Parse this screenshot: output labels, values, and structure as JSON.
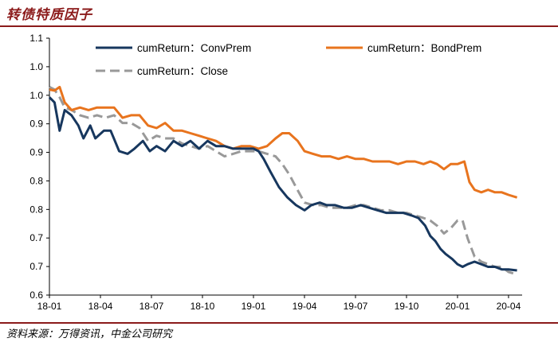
{
  "header": {
    "title": "转债特质因子"
  },
  "footer": {
    "source": "资料来源：万得资讯，中金公司研究"
  },
  "colors": {
    "brand": "#8B1A1A",
    "ConvPrem": "#17375E",
    "BondPrem": "#E8741E",
    "Close": "#999999"
  },
  "chart_data": {
    "type": "line",
    "title": "",
    "xlabel": "",
    "ylabel": "",
    "ylim": [
      0.6,
      1.1
    ],
    "ytick_labels": [
      "1.1",
      "1.0",
      "1.0",
      "0.9",
      "0.9",
      "0.8",
      "0.8",
      "0.7",
      "0.7",
      "0.6"
    ],
    "xtick_labels": [
      "18-01",
      "18-04",
      "18-07",
      "18-10",
      "19-01",
      "19-04",
      "19-07",
      "19-10",
      "20-01",
      "20-04"
    ],
    "x_unit": "months since 2018-01",
    "legend_position": "top",
    "series": [
      {
        "name": "cumReturn：ConvPrem",
        "color": "#17375E",
        "dash": "solid",
        "points": [
          [
            0,
            0.985
          ],
          [
            0.3,
            0.975
          ],
          [
            0.6,
            0.92
          ],
          [
            0.9,
            0.96
          ],
          [
            1.3,
            0.95
          ],
          [
            1.7,
            0.93
          ],
          [
            2.0,
            0.905
          ],
          [
            2.4,
            0.93
          ],
          [
            2.7,
            0.905
          ],
          [
            3.2,
            0.92
          ],
          [
            3.6,
            0.92
          ],
          [
            4.1,
            0.88
          ],
          [
            4.6,
            0.875
          ],
          [
            5.0,
            0.885
          ],
          [
            5.5,
            0.9
          ],
          [
            5.9,
            0.88
          ],
          [
            6.3,
            0.89
          ],
          [
            6.8,
            0.88
          ],
          [
            7.3,
            0.9
          ],
          [
            7.8,
            0.89
          ],
          [
            8.3,
            0.9
          ],
          [
            8.8,
            0.885
          ],
          [
            9.3,
            0.9
          ],
          [
            9.8,
            0.89
          ],
          [
            10.3,
            0.89
          ],
          [
            10.8,
            0.885
          ],
          [
            11.4,
            0.885
          ],
          [
            12.0,
            0.885
          ],
          [
            12.3,
            0.88
          ],
          [
            12.6,
            0.865
          ],
          [
            13.0,
            0.84
          ],
          [
            13.5,
            0.81
          ],
          [
            14.0,
            0.79
          ],
          [
            14.5,
            0.775
          ],
          [
            15.0,
            0.765
          ],
          [
            15.4,
            0.775
          ],
          [
            15.9,
            0.78
          ],
          [
            16.3,
            0.775
          ],
          [
            16.8,
            0.775
          ],
          [
            17.3,
            0.77
          ],
          [
            17.8,
            0.77
          ],
          [
            18.3,
            0.775
          ],
          [
            18.8,
            0.77
          ],
          [
            19.3,
            0.765
          ],
          [
            19.8,
            0.76
          ],
          [
            20.3,
            0.76
          ],
          [
            20.8,
            0.76
          ],
          [
            21.3,
            0.755
          ],
          [
            21.7,
            0.75
          ],
          [
            22.1,
            0.735
          ],
          [
            22.4,
            0.715
          ],
          [
            22.7,
            0.705
          ],
          [
            23.0,
            0.69
          ],
          [
            23.3,
            0.68
          ],
          [
            23.7,
            0.67
          ],
          [
            24.0,
            0.66
          ],
          [
            24.3,
            0.655
          ],
          [
            24.6,
            0.66
          ],
          [
            25.0,
            0.665
          ],
          [
            25.4,
            0.66
          ],
          [
            25.8,
            0.655
          ],
          [
            26.2,
            0.655
          ],
          [
            26.6,
            0.65
          ],
          [
            27.0,
            0.65
          ],
          [
            27.5,
            0.648
          ]
        ]
      },
      {
        "name": "cumReturn：BondPrem",
        "color": "#E8741E",
        "dash": "solid",
        "points": [
          [
            0,
            1.0
          ],
          [
            0.3,
            0.998
          ],
          [
            0.6,
            1.005
          ],
          [
            0.9,
            0.975
          ],
          [
            1.3,
            0.96
          ],
          [
            1.8,
            0.965
          ],
          [
            2.3,
            0.96
          ],
          [
            2.8,
            0.965
          ],
          [
            3.3,
            0.965
          ],
          [
            3.8,
            0.965
          ],
          [
            4.3,
            0.945
          ],
          [
            4.8,
            0.95
          ],
          [
            5.3,
            0.95
          ],
          [
            5.8,
            0.93
          ],
          [
            6.3,
            0.925
          ],
          [
            6.8,
            0.935
          ],
          [
            7.3,
            0.92
          ],
          [
            7.8,
            0.92
          ],
          [
            8.3,
            0.915
          ],
          [
            8.8,
            0.91
          ],
          [
            9.3,
            0.905
          ],
          [
            9.8,
            0.9
          ],
          [
            10.3,
            0.89
          ],
          [
            10.8,
            0.885
          ],
          [
            11.3,
            0.89
          ],
          [
            11.8,
            0.89
          ],
          [
            12.3,
            0.885
          ],
          [
            12.8,
            0.89
          ],
          [
            13.3,
            0.905
          ],
          [
            13.7,
            0.915
          ],
          [
            14.1,
            0.915
          ],
          [
            14.6,
            0.9
          ],
          [
            15.0,
            0.88
          ],
          [
            15.5,
            0.875
          ],
          [
            16.0,
            0.87
          ],
          [
            16.5,
            0.87
          ],
          [
            17.0,
            0.865
          ],
          [
            17.5,
            0.87
          ],
          [
            18.0,
            0.865
          ],
          [
            18.5,
            0.865
          ],
          [
            19.0,
            0.86
          ],
          [
            19.5,
            0.86
          ],
          [
            20.0,
            0.86
          ],
          [
            20.5,
            0.855
          ],
          [
            21.0,
            0.86
          ],
          [
            21.5,
            0.86
          ],
          [
            22.0,
            0.855
          ],
          [
            22.4,
            0.86
          ],
          [
            22.8,
            0.855
          ],
          [
            23.2,
            0.845
          ],
          [
            23.6,
            0.855
          ],
          [
            24.0,
            0.855
          ],
          [
            24.4,
            0.86
          ],
          [
            24.7,
            0.82
          ],
          [
            25.0,
            0.805
          ],
          [
            25.4,
            0.8
          ],
          [
            25.8,
            0.805
          ],
          [
            26.2,
            0.8
          ],
          [
            26.6,
            0.8
          ],
          [
            27.0,
            0.795
          ],
          [
            27.5,
            0.79
          ]
        ]
      },
      {
        "name": "cumReturn：Close",
        "color": "#999999",
        "dash": "dashed",
        "points": [
          [
            0,
            1.005
          ],
          [
            0.3,
            1.0
          ],
          [
            0.6,
            0.985
          ],
          [
            0.9,
            0.965
          ],
          [
            1.3,
            0.96
          ],
          [
            1.8,
            0.95
          ],
          [
            2.3,
            0.945
          ],
          [
            2.8,
            0.95
          ],
          [
            3.3,
            0.945
          ],
          [
            3.8,
            0.95
          ],
          [
            4.3,
            0.935
          ],
          [
            4.8,
            0.935
          ],
          [
            5.3,
            0.925
          ],
          [
            5.8,
            0.9
          ],
          [
            6.3,
            0.91
          ],
          [
            6.8,
            0.905
          ],
          [
            7.3,
            0.905
          ],
          [
            7.8,
            0.895
          ],
          [
            8.3,
            0.89
          ],
          [
            8.8,
            0.885
          ],
          [
            9.3,
            0.89
          ],
          [
            9.8,
            0.88
          ],
          [
            10.3,
            0.87
          ],
          [
            10.8,
            0.875
          ],
          [
            11.3,
            0.88
          ],
          [
            11.8,
            0.88
          ],
          [
            12.3,
            0.88
          ],
          [
            12.8,
            0.875
          ],
          [
            13.3,
            0.87
          ],
          [
            13.7,
            0.855
          ],
          [
            14.1,
            0.835
          ],
          [
            14.5,
            0.81
          ],
          [
            15.0,
            0.78
          ],
          [
            15.5,
            0.775
          ],
          [
            16.0,
            0.775
          ],
          [
            16.5,
            0.77
          ],
          [
            17.0,
            0.77
          ],
          [
            17.5,
            0.77
          ],
          [
            18.0,
            0.775
          ],
          [
            18.5,
            0.775
          ],
          [
            19.0,
            0.77
          ],
          [
            19.5,
            0.765
          ],
          [
            20.0,
            0.765
          ],
          [
            20.5,
            0.76
          ],
          [
            21.0,
            0.76
          ],
          [
            21.5,
            0.755
          ],
          [
            22.0,
            0.75
          ],
          [
            22.4,
            0.745
          ],
          [
            22.8,
            0.735
          ],
          [
            23.2,
            0.72
          ],
          [
            23.6,
            0.73
          ],
          [
            24.0,
            0.745
          ],
          [
            24.3,
            0.745
          ],
          [
            24.6,
            0.71
          ],
          [
            25.0,
            0.675
          ],
          [
            25.4,
            0.665
          ],
          [
            25.8,
            0.66
          ],
          [
            26.2,
            0.655
          ],
          [
            26.6,
            0.655
          ],
          [
            27.0,
            0.645
          ],
          [
            27.5,
            0.64
          ]
        ]
      }
    ]
  }
}
